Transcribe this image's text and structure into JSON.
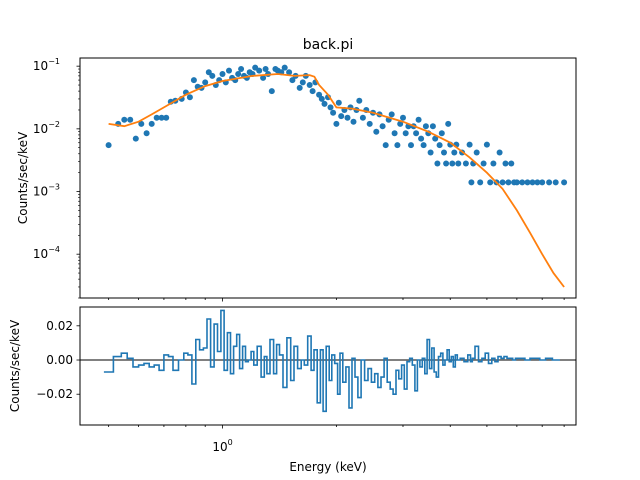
{
  "chart_data": [
    {
      "type": "scatter",
      "title": "back.pi",
      "xlabel": "",
      "ylabel": "Counts/sec/keV",
      "xscale": "log",
      "yscale": "log",
      "xlim": [
        0.42,
        8.6
      ],
      "ylim": [
        2e-05,
        0.135
      ],
      "yticks": [
        {
          "base": "10",
          "exp": "−1",
          "value": 0.1
        },
        {
          "base": "10",
          "exp": "−2",
          "value": 0.01
        },
        {
          "base": "10",
          "exp": "−3",
          "value": 0.001
        },
        {
          "base": "10",
          "exp": "−4",
          "value": 0.0001
        }
      ],
      "grid": false,
      "colors": {
        "data": "#1f77b4",
        "model": "#ff7f0e"
      },
      "data": {
        "x": [
          0.5,
          0.53,
          0.55,
          0.57,
          0.59,
          0.61,
          0.63,
          0.65,
          0.67,
          0.69,
          0.71,
          0.73,
          0.75,
          0.78,
          0.8,
          0.82,
          0.84,
          0.86,
          0.88,
          0.9,
          0.92,
          0.94,
          0.96,
          0.98,
          1.0,
          1.02,
          1.04,
          1.06,
          1.08,
          1.1,
          1.12,
          1.14,
          1.16,
          1.18,
          1.2,
          1.22,
          1.25,
          1.28,
          1.3,
          1.32,
          1.35,
          1.38,
          1.4,
          1.43,
          1.46,
          1.5,
          1.53,
          1.56,
          1.6,
          1.63,
          1.66,
          1.7,
          1.73,
          1.76,
          1.8,
          1.83,
          1.86,
          1.9,
          1.93,
          1.96,
          2.0,
          2.03,
          2.06,
          2.1,
          2.14,
          2.18,
          2.22,
          2.26,
          2.3,
          2.35,
          2.4,
          2.45,
          2.5,
          2.55,
          2.6,
          2.65,
          2.7,
          2.75,
          2.8,
          2.85,
          2.9,
          2.95,
          3.0,
          3.05,
          3.1,
          3.15,
          3.2,
          3.25,
          3.3,
          3.35,
          3.4,
          3.45,
          3.5,
          3.55,
          3.6,
          3.65,
          3.7,
          3.75,
          3.8,
          3.85,
          3.9,
          3.95,
          4.0,
          4.05,
          4.1,
          4.15,
          4.2,
          4.3,
          4.4,
          4.5,
          4.55,
          4.6,
          4.7,
          4.8,
          4.9,
          5.0,
          5.1,
          5.2,
          5.3,
          5.4,
          5.5,
          5.6,
          5.7,
          5.8,
          5.9,
          6.0,
          6.2,
          6.4,
          6.6,
          6.8,
          7.0,
          7.3,
          7.6,
          8.0
        ],
        "y": [
          0.0055,
          0.012,
          0.014,
          0.014,
          0.007,
          0.012,
          0.0085,
          0.012,
          0.015,
          0.015,
          0.015,
          0.027,
          0.028,
          0.03,
          0.038,
          0.032,
          0.06,
          0.047,
          0.045,
          0.055,
          0.08,
          0.07,
          0.05,
          0.06,
          0.075,
          0.055,
          0.085,
          0.065,
          0.06,
          0.075,
          0.09,
          0.07,
          0.065,
          0.08,
          0.075,
          0.095,
          0.085,
          0.065,
          0.09,
          0.075,
          0.04,
          0.09,
          0.085,
          0.08,
          0.095,
          0.08,
          0.06,
          0.07,
          0.045,
          0.055,
          0.07,
          0.05,
          0.04,
          0.055,
          0.035,
          0.03,
          0.025,
          0.032,
          0.022,
          0.018,
          0.012,
          0.026,
          0.016,
          0.02,
          0.015,
          0.022,
          0.013,
          0.02,
          0.028,
          0.015,
          0.02,
          0.012,
          0.018,
          0.009,
          0.017,
          0.011,
          0.0055,
          0.014,
          0.017,
          0.0085,
          0.0055,
          0.012,
          0.015,
          0.0085,
          0.011,
          0.0055,
          0.011,
          0.0085,
          0.014,
          0.007,
          0.0055,
          0.011,
          0.0085,
          0.0042,
          0.011,
          0.007,
          0.0028,
          0.0055,
          0.0085,
          0.0042,
          0.0028,
          0.012,
          0.0056,
          0.0028,
          0.0042,
          0.0056,
          0.0028,
          0.0042,
          0.0028,
          0.0056,
          0.0014,
          0.0028,
          0.0042,
          0.0014,
          0.0028,
          0.0056,
          0.0014,
          0.0028,
          0.0014,
          0.0042,
          0.0014,
          0.0028,
          0.0014,
          0.0028,
          0.0014,
          0.0014,
          0.0014,
          0.0014,
          0.0014,
          0.0014,
          0.0014,
          0.0014,
          0.0014,
          0.0014
        ]
      },
      "model": {
        "x": [
          0.5,
          0.55,
          0.6,
          0.65,
          0.7,
          0.8,
          0.9,
          1.0,
          1.2,
          1.4,
          1.55,
          1.7,
          1.75,
          1.8,
          1.9,
          2.0,
          2.2,
          2.5,
          3.0,
          3.5,
          4.0,
          4.5,
          5.0,
          5.5,
          6.0,
          6.5,
          7.0,
          7.5,
          8.0
        ],
        "y": [
          0.012,
          0.011,
          0.013,
          0.017,
          0.022,
          0.035,
          0.048,
          0.058,
          0.07,
          0.075,
          0.07,
          0.072,
          0.068,
          0.05,
          0.035,
          0.022,
          0.021,
          0.018,
          0.013,
          0.009,
          0.006,
          0.0035,
          0.002,
          0.0011,
          0.0005,
          0.00022,
          0.0001,
          5e-05,
          3e-05
        ]
      }
    },
    {
      "type": "line",
      "title": "",
      "xlabel": "Energy (keV)",
      "ylabel": "Counts/sec/keV",
      "xscale": "log",
      "xlim": [
        0.42,
        8.6
      ],
      "ylim": [
        -0.038,
        0.031
      ],
      "xticks": [
        {
          "base": "10",
          "exp": "0",
          "value": 1
        }
      ],
      "yticks": [
        {
          "label": "0.02",
          "value": 0.02
        },
        {
          "label": "0.00",
          "value": 0
        },
        {
          "label": "−0.02",
          "value": -0.02
        }
      ],
      "zero_line": 0,
      "colors": {
        "residuals": "#1f77b4",
        "zero_line": "#000000"
      },
      "residuals": [
        -0.007,
        0.002,
        0.004,
        0.001,
        -0.004,
        -0.003,
        -0.002,
        -0.004,
        -0.003,
        -0.006,
        0.003,
        0.002,
        -0.006,
        0.0,
        0.004,
        0.003,
        -0.014,
        0.012,
        0.006,
        0.007,
        0.024,
        -0.004,
        0.021,
        0.005,
        0.029,
        -0.006,
        0.016,
        -0.008,
        0.008,
        0.015,
        -0.005,
        0.008,
        -0.001,
        0.0,
        0.005,
        -0.003,
        0.008,
        -0.01,
        0.002,
        -0.008,
        0.012,
        -0.008,
        0.009,
        0.003,
        -0.016,
        0.013,
        -0.012,
        0.008,
        -0.005,
        0.0,
        -0.003,
        0.014,
        -0.006,
        0.006,
        -0.025,
        0.006,
        -0.03,
        0.008,
        -0.012,
        0.003,
        -0.002,
        -0.02,
        0.004,
        -0.013,
        -0.004,
        -0.028,
        0.001,
        -0.01,
        -0.022,
        0.0,
        -0.012,
        -0.005,
        -0.013,
        -0.008,
        -0.016,
        -0.01,
        0.001,
        -0.013,
        -0.017,
        -0.02,
        -0.006,
        -0.011,
        -0.003,
        -0.017,
        -0.001,
        0.001,
        -0.003,
        -0.018,
        0.0,
        -0.004,
        0.001,
        -0.008,
        0.012,
        -0.005,
        0.007,
        -0.007,
        -0.01,
        0.002,
        0.004,
        -0.003,
        0.0,
        0.006,
        -0.001,
        0.002,
        -0.004,
        0.003,
        0.0,
        0.001,
        -0.001,
        0.003,
        -0.001,
        0.001,
        0.008,
        -0.001,
        0.001,
        0.004,
        -0.002,
        0.001,
        -0.001,
        0.002,
        0.001,
        0.002,
        0.001,
        0.001,
        0.0,
        0.001,
        0.001,
        0.0,
        0.001,
        0.001,
        0.0,
        0.001,
        0.0
      ]
    }
  ]
}
